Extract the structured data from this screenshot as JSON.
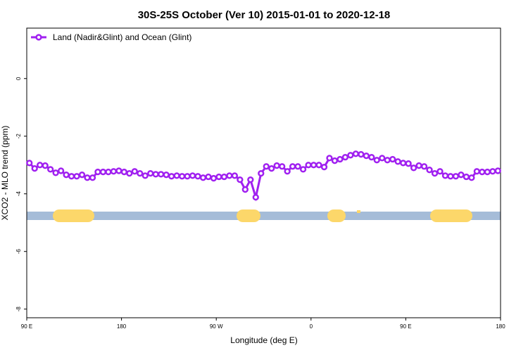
{
  "chart_data": {
    "type": "line",
    "title": "30S-25S October (Ver 10)   2015-01-01 to 2020-12-18",
    "xlabel": "Longitude (deg E)",
    "ylabel": "XCO2 - MLO trend (ppm)",
    "xlim": [
      90,
      540
    ],
    "xticks": [
      {
        "value": 90,
        "label": "90 E"
      },
      {
        "value": 180,
        "label": "180"
      },
      {
        "value": 270,
        "label": "90 W"
      },
      {
        "value": 360,
        "label": "0"
      },
      {
        "value": 450,
        "label": "90 E"
      },
      {
        "value": 540,
        "label": "180"
      }
    ],
    "ylim": [
      -8.3,
      1.75
    ],
    "yticks": [
      0,
      -2,
      -4,
      -6,
      -8
    ],
    "legend": "top-left",
    "x": [
      92.5,
      97.5,
      102.5,
      107.5,
      112.5,
      117.5,
      122.5,
      127.5,
      132.5,
      137.5,
      142.5,
      147.5,
      152.5,
      157.5,
      162.5,
      167.5,
      172.5,
      177.5,
      182.5,
      187.5,
      192.5,
      197.5,
      202.5,
      207.5,
      212.5,
      217.5,
      222.5,
      227.5,
      232.5,
      237.5,
      242.5,
      247.5,
      252.5,
      257.5,
      262.5,
      267.5,
      272.5,
      277.5,
      282.5,
      287.5,
      292.5,
      297.5,
      302.5,
      307.5,
      312.5,
      317.5,
      322.5,
      327.5,
      332.5,
      337.5,
      342.5,
      347.5,
      352.5,
      357.5,
      362.5,
      367.5,
      372.5,
      377.5,
      382.5,
      387.5,
      392.5,
      397.5,
      402.5,
      407.5,
      412.5,
      417.5,
      422.5,
      427.5,
      432.5,
      437.5,
      442.5,
      447.5,
      452.5,
      457.5,
      462.5,
      467.5,
      472.5,
      477.5,
      482.5,
      487.5,
      492.5,
      497.5,
      502.5,
      507.5,
      512.5,
      517.5,
      522.5,
      527.5,
      532.5,
      537.5
    ],
    "series": [
      {
        "name": "Land (Nadir&Glint) and Ocean (Glint)",
        "color": "#a020f0",
        "values": [
          -2.93,
          -3.12,
          -3.0,
          -3.02,
          -3.15,
          -3.27,
          -3.2,
          -3.34,
          -3.39,
          -3.39,
          -3.34,
          -3.44,
          -3.44,
          -3.24,
          -3.24,
          -3.24,
          -3.22,
          -3.2,
          -3.24,
          -3.29,
          -3.22,
          -3.29,
          -3.37,
          -3.29,
          -3.32,
          -3.32,
          -3.34,
          -3.39,
          -3.37,
          -3.39,
          -3.39,
          -3.37,
          -3.39,
          -3.44,
          -3.41,
          -3.46,
          -3.41,
          -3.41,
          -3.37,
          -3.37,
          -3.51,
          -3.85,
          -3.51,
          -4.12,
          -3.29,
          -3.05,
          -3.12,
          -3.02,
          -3.05,
          -3.22,
          -3.05,
          -3.05,
          -3.15,
          -3.0,
          -3.0,
          -3.0,
          -3.07,
          -2.76,
          -2.85,
          -2.8,
          -2.73,
          -2.66,
          -2.61,
          -2.63,
          -2.68,
          -2.73,
          -2.83,
          -2.76,
          -2.83,
          -2.8,
          -2.88,
          -2.93,
          -2.95,
          -3.1,
          -3.02,
          -3.05,
          -3.17,
          -3.29,
          -3.22,
          -3.37,
          -3.39,
          -3.39,
          -3.34,
          -3.41,
          -3.44,
          -3.22,
          -3.24,
          -3.24,
          -3.22,
          -3.2
        ]
      }
    ]
  }
}
